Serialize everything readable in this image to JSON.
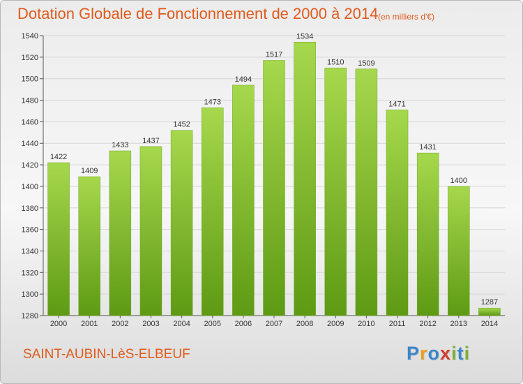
{
  "header": {
    "title": "Dotation Globale de Fonctionnement de 2000 à 2014",
    "subtitle": "(en milliers d'€)"
  },
  "footer": {
    "commune": "SAINT-AUBIN-LèS-ELBEUF",
    "logo_letters": [
      "P",
      "r",
      "o",
      "x",
      "i",
      "t",
      "i"
    ],
    "logo_colors": [
      "#3a86c8",
      "#e8a020",
      "#3a86c8",
      "#d23c2c",
      "#7ab030",
      "#3a86c8",
      "#7ab030"
    ]
  },
  "colors": {
    "bar_top": "#a6d84c",
    "bar_bottom": "#5e9a14",
    "accent": "#e05a1c",
    "grid": "#d6d6d6"
  },
  "chart_data": {
    "type": "bar",
    "title": "Dotation Globale de Fonctionnement de 2000 à 2014",
    "subtitle": "(en milliers d'€)",
    "categories": [
      "2000",
      "2001",
      "2002",
      "2003",
      "2004",
      "2005",
      "2006",
      "2007",
      "2008",
      "2009",
      "2010",
      "2011",
      "2012",
      "2013",
      "2014"
    ],
    "values": [
      1422,
      1409,
      1433,
      1437,
      1452,
      1473,
      1494,
      1517,
      1534,
      1510,
      1509,
      1471,
      1431,
      1400,
      1287
    ],
    "ylim": [
      1280,
      1540
    ],
    "yticks": [
      1280,
      1300,
      1320,
      1340,
      1360,
      1380,
      1400,
      1420,
      1440,
      1460,
      1480,
      1500,
      1520,
      1540
    ],
    "xlabel": "",
    "ylabel": "",
    "grid": true,
    "legend": "none"
  }
}
